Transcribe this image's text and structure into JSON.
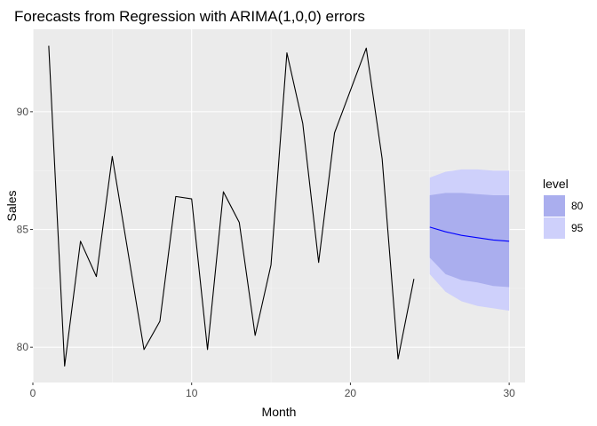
{
  "chart_data": {
    "type": "line",
    "title": "Forecasts from Regression with ARIMA(1,0,0) errors",
    "xlabel": "Month",
    "ylabel": "Sales",
    "xlim": [
      0,
      31
    ],
    "ylim": [
      78.5,
      93.5
    ],
    "x_ticks": [
      0,
      10,
      20,
      30
    ],
    "x_tick_labels": [
      "0",
      "10",
      "20",
      "30"
    ],
    "y_ticks": [
      80,
      85,
      90
    ],
    "y_tick_labels": [
      "80",
      "85",
      "90"
    ],
    "grid": true,
    "legend": {
      "title": "level",
      "placement": "right",
      "entries": [
        "80",
        "95"
      ]
    },
    "colors": {
      "panel": "#ebebeb",
      "grid_major": "#ffffff",
      "grid_minor": "#f5f5f5",
      "history": "#000000",
      "forecast_mean": "#0000ff",
      "band_80": "#aaaeee",
      "band_95": "#ced0fb"
    },
    "series": [
      {
        "kind": "history",
        "x": [
          1,
          2,
          3,
          4,
          5,
          6,
          7,
          8,
          9,
          10,
          11,
          12,
          13,
          14,
          15,
          16,
          17,
          18,
          19,
          20,
          21,
          22,
          23,
          24
        ],
        "values": [
          92.8,
          79.2,
          84.5,
          83.0,
          88.1,
          84.0,
          79.9,
          81.1,
          86.4,
          86.3,
          79.9,
          86.6,
          85.3,
          80.5,
          83.5,
          92.5,
          89.5,
          83.6,
          89.1,
          90.9,
          92.7,
          88.0,
          79.5,
          82.9
        ]
      },
      {
        "kind": "forecast_mean",
        "x": [
          25,
          26,
          27,
          28,
          29,
          30
        ],
        "values": [
          85.1,
          84.9,
          84.75,
          84.65,
          84.55,
          84.5
        ]
      },
      {
        "kind": "interval",
        "level": "80",
        "x": [
          25,
          26,
          27,
          28,
          29,
          30
        ],
        "lower": [
          83.8,
          83.1,
          82.85,
          82.75,
          82.6,
          82.55
        ],
        "upper": [
          86.45,
          86.55,
          86.55,
          86.5,
          86.45,
          86.45
        ]
      },
      {
        "kind": "interval",
        "level": "95",
        "x": [
          25,
          26,
          27,
          28,
          29,
          30
        ],
        "lower": [
          83.1,
          82.35,
          81.95,
          81.75,
          81.65,
          81.55
        ],
        "upper": [
          87.2,
          87.45,
          87.55,
          87.55,
          87.5,
          87.5
        ]
      }
    ]
  }
}
